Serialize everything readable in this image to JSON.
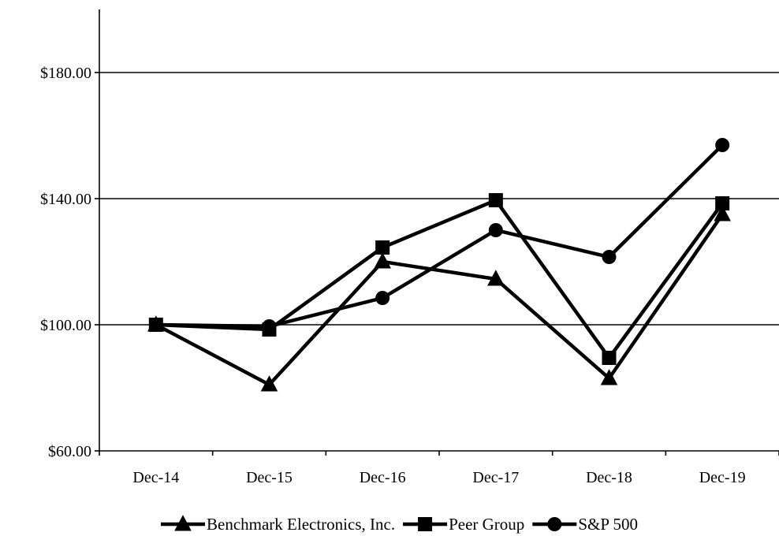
{
  "chart_data": {
    "type": "line",
    "title": "",
    "xlabel": "",
    "ylabel": "",
    "categories": [
      "Dec-14",
      "Dec-15",
      "Dec-16",
      "Dec-17",
      "Dec-18",
      "Dec-19"
    ],
    "y_ticks": [
      60,
      100,
      140,
      180
    ],
    "y_tick_labels": [
      "$60.00",
      "$100.00",
      "$140.00",
      "$180.00"
    ],
    "ylim": [
      60,
      200
    ],
    "grid": "horizontal",
    "legend_position": "bottom",
    "series": [
      {
        "name": "Benchmark Electronics, Inc.",
        "marker": "triangle",
        "color": "#000000",
        "values": [
          100.0,
          81.0,
          120.0,
          114.5,
          83.0,
          135.0
        ]
      },
      {
        "name": "Peer Group",
        "marker": "square",
        "color": "#000000",
        "values": [
          100.0,
          98.5,
          124.5,
          139.5,
          89.5,
          138.5
        ]
      },
      {
        "name": "S&P 500",
        "marker": "circle",
        "color": "#000000",
        "values": [
          100.0,
          99.5,
          108.5,
          130.0,
          121.5,
          157.0
        ]
      }
    ]
  }
}
